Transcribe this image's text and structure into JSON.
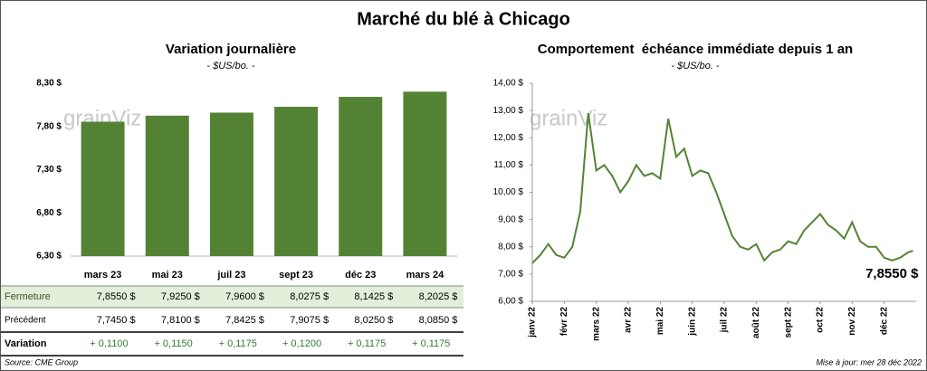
{
  "title": "Marché du blé à Chicago",
  "chart_data": [
    {
      "type": "bar",
      "title": "Variation journalière",
      "subtitle": "- $US/bo. -",
      "watermark": "grainViz",
      "categories": [
        "mars 23",
        "mai 23",
        "juil 23",
        "sept 23",
        "déc 23",
        "mars 24"
      ],
      "values": [
        7.855,
        7.925,
        7.96,
        8.0275,
        8.1425,
        8.2025
      ],
      "value_labels": [
        "7,8550 $",
        "7,9250 $",
        "7,9600 $",
        "8,0275 $",
        "8,1425 $",
        "8,2025 $"
      ],
      "color": "#548235",
      "ylim": [
        6.3,
        8.3
      ],
      "yticks": [
        {
          "value": 6.3,
          "label": "6,30 $"
        },
        {
          "value": 6.8,
          "label": "6,80 $"
        },
        {
          "value": 7.3,
          "label": "7,30 $"
        },
        {
          "value": 7.8,
          "label": "7,80 $"
        },
        {
          "value": 8.3,
          "label": "8,30 $"
        }
      ],
      "grid": false
    },
    {
      "type": "line",
      "title": "Comportement  échéance immédiate depuis 1 an",
      "subtitle": "- $US/bo. -",
      "watermark": "grainViz",
      "x": [
        0,
        0.25,
        0.5,
        0.75,
        1,
        1.25,
        1.5,
        1.75,
        2,
        2.25,
        2.5,
        2.75,
        3,
        3.25,
        3.5,
        3.75,
        4,
        4.25,
        4.5,
        4.75,
        5,
        5.25,
        5.5,
        5.75,
        6,
        6.25,
        6.5,
        6.75,
        7,
        7.25,
        7.5,
        7.75,
        8,
        8.25,
        8.5,
        8.75,
        9,
        9.25,
        9.5,
        9.75,
        10,
        10.25,
        10.5,
        10.75,
        11,
        11.25,
        11.5,
        11.75,
        11.9
      ],
      "values": [
        7.4,
        7.7,
        8.1,
        7.7,
        7.6,
        8.0,
        9.3,
        12.9,
        10.8,
        11.0,
        10.6,
        10.0,
        10.4,
        11.0,
        10.6,
        10.7,
        10.5,
        12.7,
        11.3,
        11.6,
        10.6,
        10.8,
        10.7,
        10.0,
        9.2,
        8.4,
        8.0,
        7.9,
        8.1,
        7.5,
        7.8,
        7.9,
        8.2,
        8.1,
        8.6,
        8.9,
        9.2,
        8.8,
        8.6,
        8.3,
        8.9,
        8.2,
        8.0,
        8.0,
        7.6,
        7.5,
        7.6,
        7.8,
        7.855
      ],
      "series_name": null,
      "color": "#548235",
      "annotation": "7,8550 $",
      "xlim": [
        0,
        12
      ],
      "xticks": [
        {
          "value": 0,
          "label": "janv 22"
        },
        {
          "value": 1,
          "label": "févr 22"
        },
        {
          "value": 2,
          "label": "mars 22"
        },
        {
          "value": 3,
          "label": "avr 22"
        },
        {
          "value": 4,
          "label": "mai 22"
        },
        {
          "value": 5,
          "label": "juin 22"
        },
        {
          "value": 6,
          "label": "juil 22"
        },
        {
          "value": 7,
          "label": "août 22"
        },
        {
          "value": 8,
          "label": "sept 22"
        },
        {
          "value": 9,
          "label": "oct 22"
        },
        {
          "value": 10,
          "label": "nov 22"
        },
        {
          "value": 11,
          "label": "déc 22"
        }
      ],
      "ylim": [
        6,
        14
      ],
      "yticks": [
        {
          "value": 6,
          "label": "6,00 $"
        },
        {
          "value": 7,
          "label": "7,00 $"
        },
        {
          "value": 8,
          "label": "8,00 $"
        },
        {
          "value": 9,
          "label": "9,00 $"
        },
        {
          "value": 10,
          "label": "10,00 $"
        },
        {
          "value": 11,
          "label": "11,00 $"
        },
        {
          "value": 12,
          "label": "12,00 $"
        },
        {
          "value": 13,
          "label": "13,00 $"
        },
        {
          "value": 14,
          "label": "14,00 $"
        }
      ],
      "grid": false
    }
  ],
  "table": {
    "row_labels": [
      "Fermeture",
      "Précédent",
      "Variation"
    ],
    "rows": [
      null,
      [
        "7,7450 $",
        "7,8100 $",
        "7,8425 $",
        "7,9075 $",
        "8,0250 $",
        "8,0850 $"
      ],
      [
        "+ 0,1100",
        "+ 0,1150",
        "+ 0,1175",
        "+ 0,1200",
        "+ 0,1175",
        "+ 0,1175"
      ]
    ]
  },
  "source": "Source: CME Group",
  "updated": "Mise à jour: mer 28 déc 2022"
}
